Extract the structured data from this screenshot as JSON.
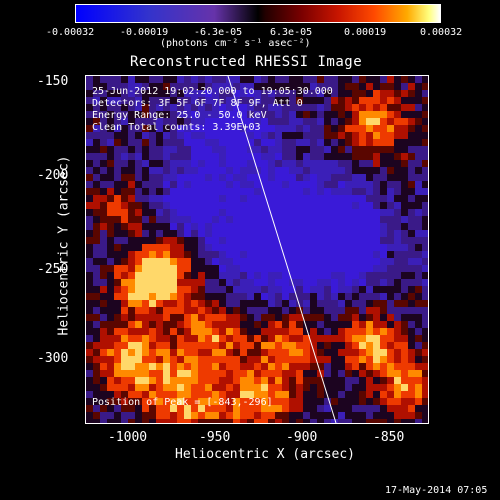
{
  "colorbar": {
    "ticks": [
      "-0.00032",
      "-0.00019",
      "-6.3e-05",
      "6.3e-05",
      "0.00019",
      "0.00032"
    ],
    "unit": "(photons cm⁻² s⁻¹ asec⁻²)"
  },
  "title": "Reconstructed RHESSI Image",
  "info": {
    "time": "25-Jun-2012 19:02:20.000 to 19:05:30.000",
    "detectors": "Detectors: 3F 5F 6F 7F 8F 9F, Att 0",
    "energy": "Energy Range: 25.0 - 50.0 keV",
    "clean": "Clean    Total counts: 3.39E+03",
    "peak": "Position of Peak = [-843,-296]"
  },
  "axes": {
    "y_title": "Heliocentric Y (arcsec)",
    "x_title": "Heliocentric X (arcsec)",
    "y_ticks": [
      "-150",
      "-200",
      "-250",
      "-300"
    ],
    "x_ticks": [
      "-1000",
      "-950",
      "-900",
      "-850"
    ]
  },
  "timestamp": "17-May-2014 07:05"
}
